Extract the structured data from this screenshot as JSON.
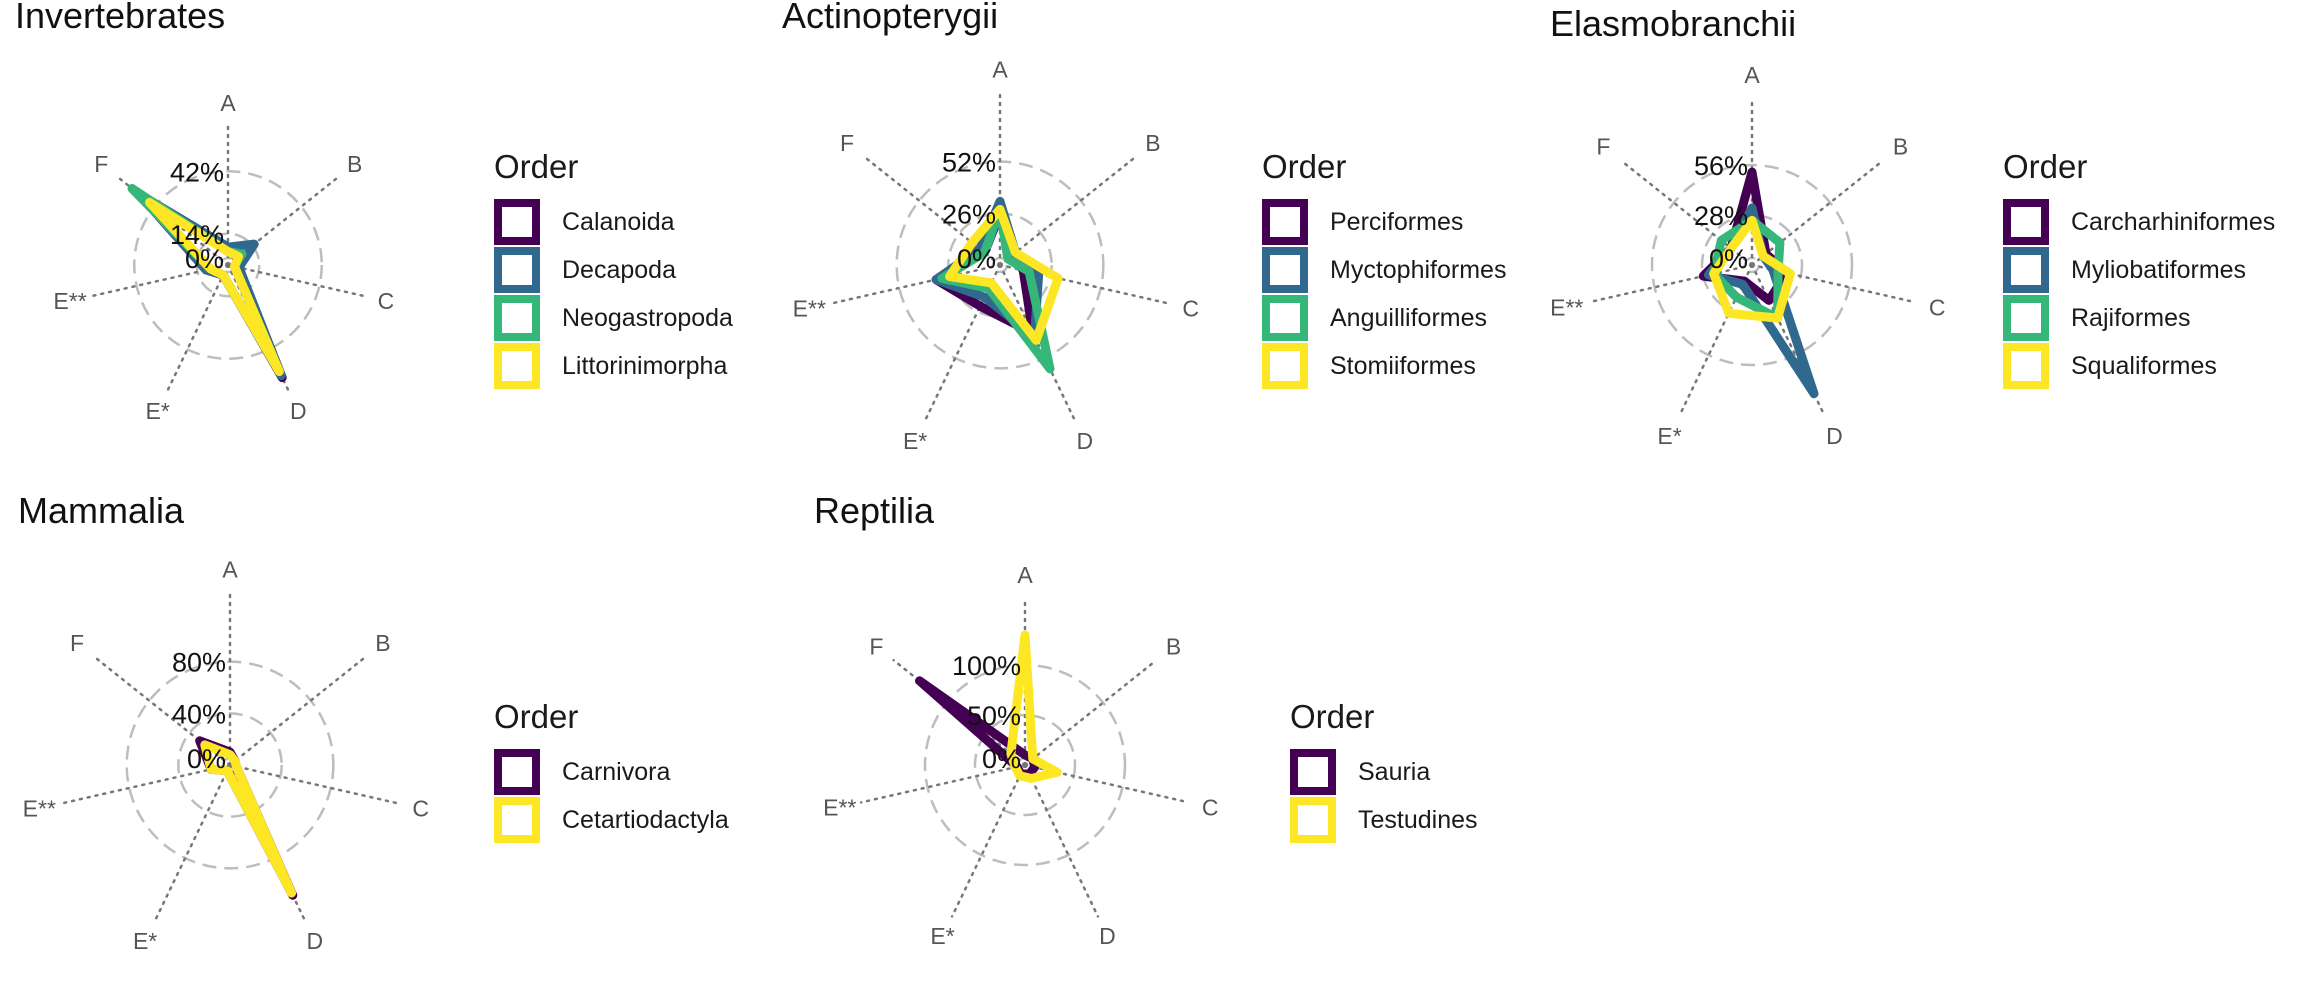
{
  "figure": {
    "axes": [
      "A",
      "B",
      "C",
      "D",
      "E*",
      "E**",
      "F"
    ],
    "legend_title": "Order"
  },
  "chart_data": [
    {
      "type": "radar",
      "title": "Invertebrates",
      "axes": [
        "A",
        "B",
        "C",
        "D",
        "E*",
        "E**",
        "F"
      ],
      "ring_labels": [
        "0%",
        "14%",
        "42%"
      ],
      "rmax": 56,
      "grid": true,
      "legend_position": "right",
      "series": [
        {
          "name": "Calanoida",
          "color": "#440154",
          "values": [
            8,
            5,
            5,
            56,
            5,
            10,
            51
          ]
        },
        {
          "name": "Decapoda",
          "color": "#31688E",
          "values": [
            8,
            15,
            5,
            55,
            5,
            10,
            50
          ]
        },
        {
          "name": "Neogastropoda",
          "color": "#35B779",
          "values": [
            6,
            8,
            3,
            52,
            5,
            8,
            55
          ]
        },
        {
          "name": "Littorinimorpha",
          "color": "#FDE725",
          "values": [
            6,
            6,
            3,
            53,
            5,
            8,
            45
          ]
        }
      ]
    },
    {
      "type": "radar",
      "title": "Actinopterygii",
      "axes": [
        "A",
        "B",
        "C",
        "D",
        "E*",
        "E**",
        "F"
      ],
      "ring_labels": [
        "0%",
        "26%",
        "52%"
      ],
      "rmax": 78,
      "grid": true,
      "legend_position": "right",
      "series": [
        {
          "name": "Perciformes",
          "color": "#440154",
          "values": [
            26,
            8,
            12,
            38,
            23,
            33,
            10
          ]
        },
        {
          "name": "Myctophiformes",
          "color": "#31688E",
          "values": [
            32,
            10,
            20,
            40,
            18,
            33,
            13
          ]
        },
        {
          "name": "Anguilliformes",
          "color": "#35B779",
          "values": [
            28,
            5,
            15,
            58,
            13,
            30,
            10
          ]
        },
        {
          "name": "Stomiiformes",
          "color": "#FDE725",
          "values": [
            28,
            10,
            30,
            42,
            10,
            26,
            18
          ]
        }
      ]
    },
    {
      "type": "radar",
      "title": "Elasmobranchii",
      "axes": [
        "A",
        "B",
        "C",
        "D",
        "E*",
        "E**",
        "F"
      ],
      "ring_labels": [
        "0%",
        "28%",
        "56%"
      ],
      "rmax": 84,
      "grid": true,
      "legend_position": "right",
      "series": [
        {
          "name": "Carcharhiniformes",
          "color": "#440154",
          "values": [
            52,
            10,
            20,
            22,
            10,
            28,
            15
          ]
        },
        {
          "name": "Myliobatiformes",
          "color": "#31688E",
          "values": [
            32,
            8,
            12,
            80,
            12,
            25,
            15
          ]
        },
        {
          "name": "Rajiformes",
          "color": "#35B779",
          "values": [
            25,
            20,
            15,
            33,
            20,
            22,
            22
          ]
        },
        {
          "name": "Squaliformes",
          "color": "#FDE725",
          "values": [
            25,
            8,
            22,
            33,
            30,
            22,
            15
          ]
        }
      ]
    },
    {
      "type": "radar",
      "title": "Mammalia",
      "axes": [
        "A",
        "B",
        "C",
        "D",
        "E*",
        "E**",
        "F"
      ],
      "ring_labels": [
        "0%",
        "40%",
        "80%"
      ],
      "rmax": 120,
      "grid": true,
      "legend_position": "right",
      "series": [
        {
          "name": "Carnivora",
          "color": "#440154",
          "values": [
            10,
            5,
            5,
            112,
            5,
            15,
            30
          ]
        },
        {
          "name": "Cetartiodactyla",
          "color": "#FDE725",
          "values": [
            8,
            5,
            5,
            110,
            5,
            15,
            25
          ]
        }
      ]
    },
    {
      "type": "radar",
      "title": "Reptilia",
      "axes": [
        "A",
        "B",
        "C",
        "D",
        "E*",
        "E**",
        "F"
      ],
      "ring_labels": [
        "0%",
        "50%",
        "100%"
      ],
      "rmax": 150,
      "grid": true,
      "legend_position": "right",
      "series": [
        {
          "name": "Sauria",
          "color": "#440154",
          "values": [
            10,
            10,
            10,
            10,
            10,
            8,
            135
          ]
        },
        {
          "name": "Testudines",
          "color": "#FDE725",
          "values": [
            130,
            10,
            33,
            15,
            12,
            10,
            18
          ]
        }
      ]
    }
  ]
}
